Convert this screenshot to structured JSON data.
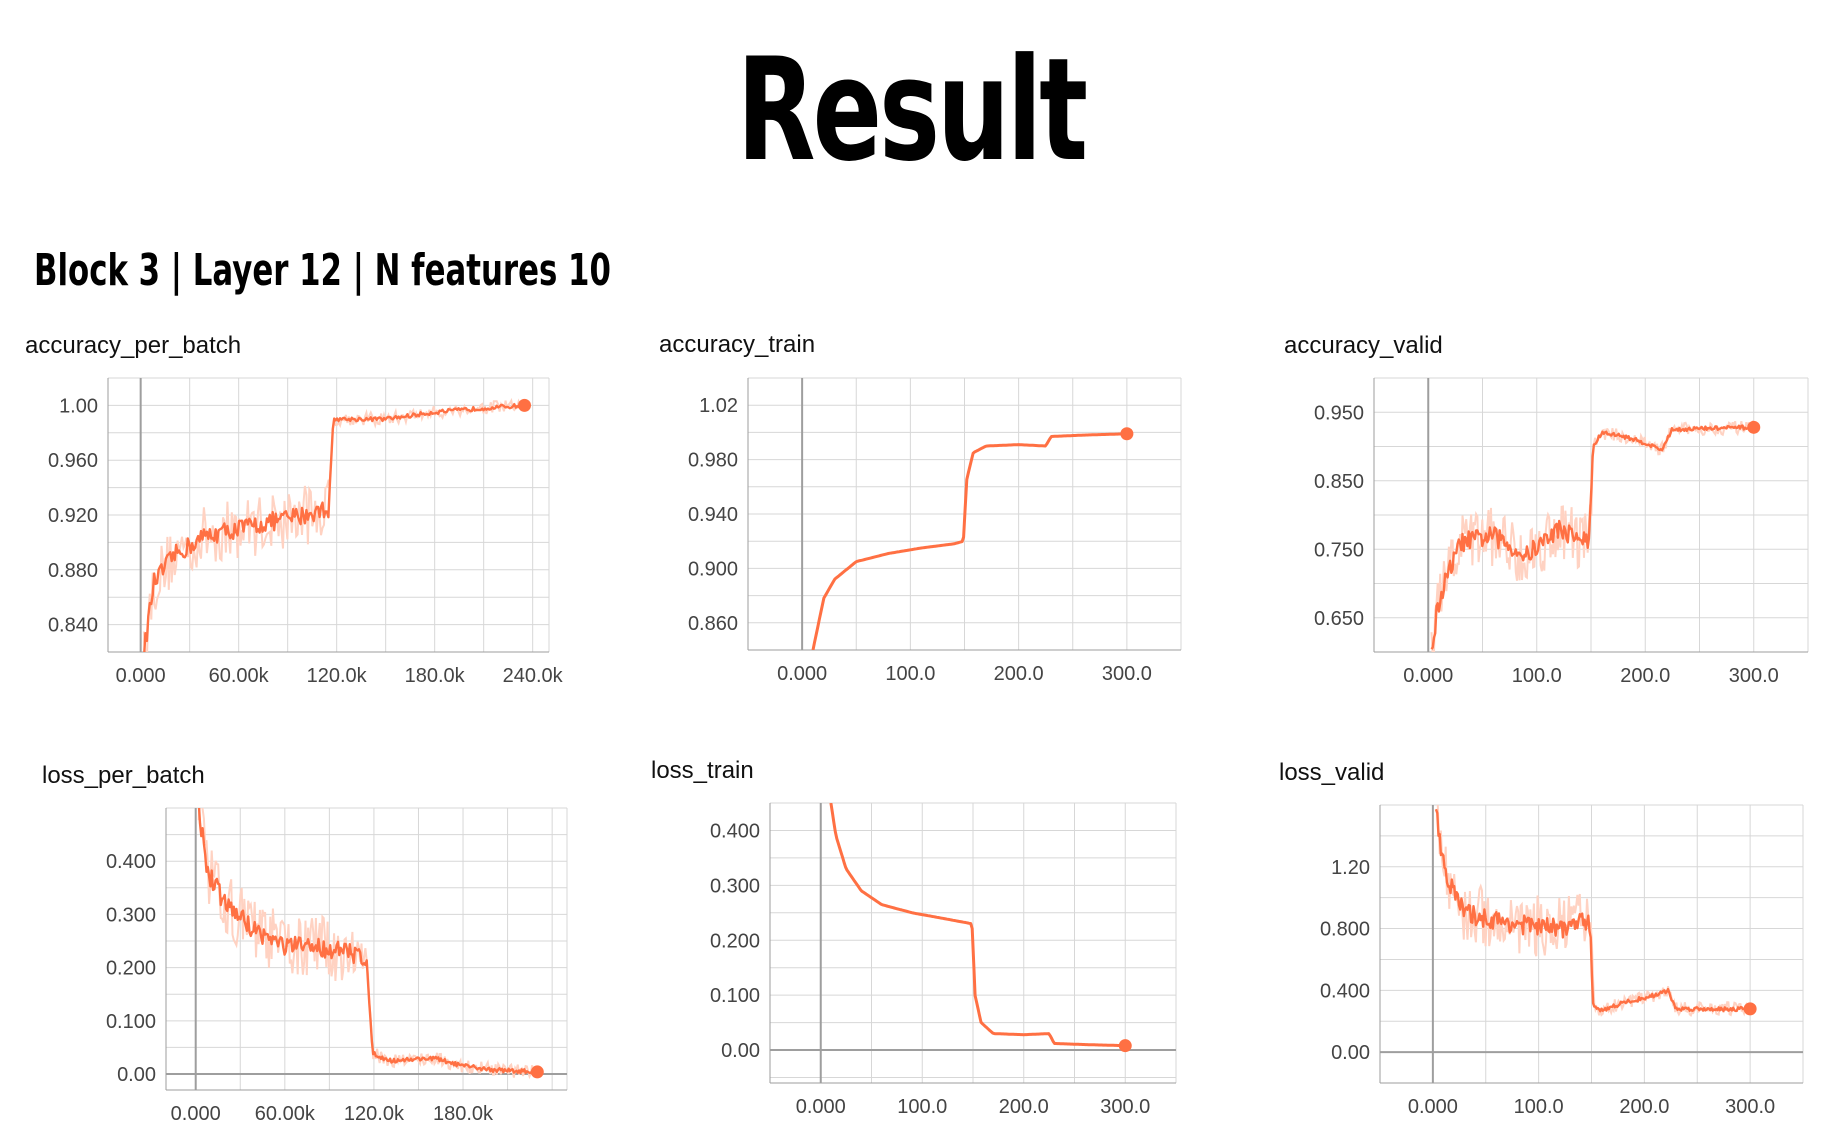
{
  "title": "Result",
  "subtitle": "Block 3 | Layer 12 | N features 10",
  "colors": {
    "line": "#ff7043",
    "raw": "#ffd2c2",
    "grid": "#d7d7d7",
    "axis": "#9e9e9e"
  },
  "chart_data": [
    {
      "type": "line",
      "title": "accuracy_per_batch",
      "noisy": true,
      "xlim": [
        -20000,
        250000
      ],
      "ylim": [
        0.82,
        1.02
      ],
      "xticks": [
        0,
        60000,
        120000,
        180000,
        240000
      ],
      "xtick_labels": [
        "0.000",
        "60.00k",
        "120.0k",
        "180.0k",
        "240.0k"
      ],
      "yticks": [
        0.84,
        0.88,
        0.92,
        0.96,
        1.0
      ],
      "ytick_labels": [
        "0.840",
        "0.880",
        "0.920",
        "0.960",
        "1.00"
      ],
      "series": [
        {
          "x": [
            2000,
            8000,
            20000,
            40000,
            60000,
            80000,
            100000,
            115000,
            118000,
            125000,
            150000,
            180000,
            210000,
            235000
          ],
          "y": [
            0.82,
            0.87,
            0.89,
            0.905,
            0.91,
            0.915,
            0.92,
            0.925,
            0.99,
            0.99,
            0.99,
            0.995,
            0.998,
            1.0
          ]
        }
      ]
    },
    {
      "type": "line",
      "title": "accuracy_train",
      "noisy": false,
      "xlim": [
        -50,
        350
      ],
      "ylim": [
        0.84,
        1.04
      ],
      "xticks": [
        0,
        100,
        200,
        300
      ],
      "xtick_labels": [
        "0.000",
        "100.0",
        "200.0",
        "300.0"
      ],
      "yticks": [
        0.86,
        0.9,
        0.94,
        0.98,
        1.02
      ],
      "ytick_labels": [
        "0.860",
        "0.900",
        "0.940",
        "0.980",
        "1.02"
      ],
      "series": [
        {
          "x": [
            10,
            20,
            30,
            50,
            80,
            110,
            140,
            149,
            152,
            158,
            170,
            200,
            225,
            230,
            260,
            300
          ],
          "y": [
            0.84,
            0.878,
            0.892,
            0.905,
            0.911,
            0.915,
            0.918,
            0.92,
            0.965,
            0.985,
            0.99,
            0.991,
            0.99,
            0.997,
            0.998,
            0.999
          ]
        }
      ]
    },
    {
      "type": "line",
      "title": "accuracy_valid",
      "noisy": true,
      "xlim": [
        -50,
        350
      ],
      "ylim": [
        0.6,
        1.0
      ],
      "xticks": [
        0,
        100,
        200,
        300
      ],
      "xtick_labels": [
        "0.000",
        "100.0",
        "200.0",
        "300.0"
      ],
      "yticks": [
        0.65,
        0.75,
        0.85,
        0.95
      ],
      "ytick_labels": [
        "0.650",
        "0.750",
        "0.850",
        "0.950"
      ],
      "series": [
        {
          "x": [
            3,
            8,
            15,
            30,
            60,
            90,
            120,
            148,
            152,
            160,
            180,
            200,
            215,
            225,
            250,
            300
          ],
          "y": [
            0.6,
            0.66,
            0.7,
            0.76,
            0.77,
            0.74,
            0.78,
            0.76,
            0.9,
            0.92,
            0.915,
            0.905,
            0.895,
            0.925,
            0.926,
            0.928
          ]
        }
      ]
    },
    {
      "type": "line",
      "title": "loss_per_batch",
      "noisy": true,
      "xlim": [
        -20000,
        250000
      ],
      "ylim": [
        -0.03,
        0.5
      ],
      "xticks": [
        0,
        60000,
        120000,
        180000
      ],
      "xtick_labels": [
        "0.000",
        "60.00k",
        "120.0k",
        "180.0k"
      ],
      "yticks": [
        0.0,
        0.1,
        0.2,
        0.3,
        0.4
      ],
      "ytick_labels": [
        "0.00",
        "0.100",
        "0.200",
        "0.300",
        "0.400"
      ],
      "series": [
        {
          "x": [
            2000,
            8000,
            20000,
            40000,
            60000,
            80000,
            100000,
            115000,
            119000,
            130000,
            160000,
            180000,
            200000,
            230000
          ],
          "y": [
            0.5,
            0.38,
            0.32,
            0.27,
            0.24,
            0.24,
            0.23,
            0.22,
            0.04,
            0.025,
            0.03,
            0.015,
            0.008,
            0.004
          ]
        }
      ]
    },
    {
      "type": "line",
      "title": "loss_train",
      "noisy": false,
      "xlim": [
        -50,
        350
      ],
      "ylim": [
        -0.06,
        0.45
      ],
      "xticks": [
        0,
        100,
        200,
        300
      ],
      "xtick_labels": [
        "0.000",
        "100.0",
        "200.0",
        "300.0"
      ],
      "yticks": [
        0.0,
        0.1,
        0.2,
        0.3,
        0.4
      ],
      "ytick_labels": [
        "0.00",
        "0.100",
        "0.200",
        "0.300",
        "0.400"
      ],
      "series": [
        {
          "x": [
            10,
            15,
            25,
            40,
            60,
            90,
            120,
            149,
            152,
            158,
            170,
            200,
            225,
            230,
            260,
            300
          ],
          "y": [
            0.45,
            0.39,
            0.33,
            0.29,
            0.265,
            0.25,
            0.24,
            0.23,
            0.1,
            0.05,
            0.03,
            0.028,
            0.03,
            0.012,
            0.01,
            0.008
          ]
        }
      ]
    },
    {
      "type": "line",
      "title": "loss_valid",
      "noisy": true,
      "xlim": [
        -50,
        350
      ],
      "ylim": [
        -0.2,
        1.6
      ],
      "xticks": [
        0,
        100,
        200,
        300
      ],
      "xtick_labels": [
        "0.000",
        "100.0",
        "200.0",
        "300.0"
      ],
      "yticks": [
        0.0,
        0.4,
        0.8,
        1.2
      ],
      "ytick_labels": [
        "0.00",
        "0.400",
        "0.800",
        "1.20"
      ],
      "series": [
        {
          "x": [
            3,
            8,
            15,
            30,
            60,
            90,
            120,
            148,
            152,
            160,
            180,
            200,
            215,
            222,
            230,
            260,
            300
          ],
          "y": [
            1.6,
            1.3,
            1.1,
            0.9,
            0.85,
            0.82,
            0.8,
            0.85,
            0.3,
            0.27,
            0.32,
            0.35,
            0.38,
            0.4,
            0.28,
            0.28,
            0.28
          ]
        }
      ]
    }
  ]
}
